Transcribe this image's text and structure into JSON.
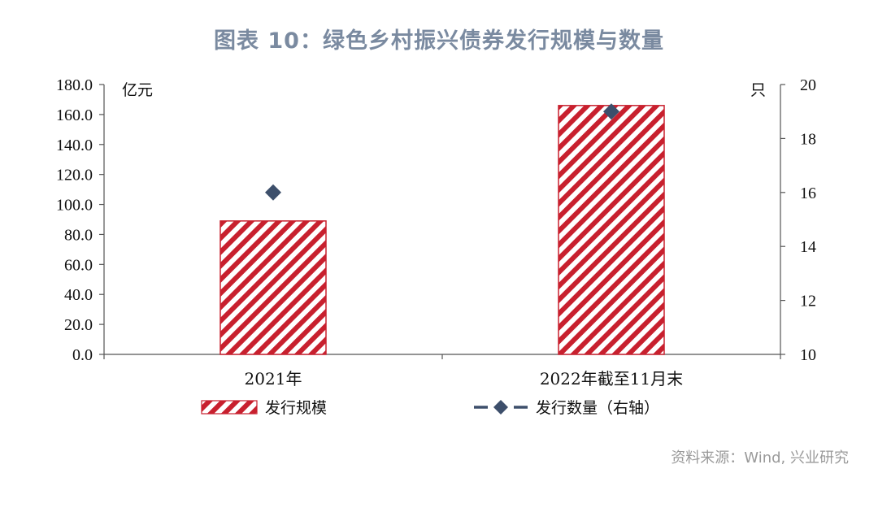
{
  "title": "图表 10：绿色乡村振兴债券发行规模与数量",
  "source": "资料来源：Wind, 兴业研究",
  "colors": {
    "bar": "#c8202e",
    "marker": "#3d4f6b",
    "title": "#7a8aa0"
  },
  "chart_data": {
    "type": "bar",
    "categories": [
      "2021年",
      "2022年截至11月末"
    ],
    "series": [
      {
        "name": "发行规模",
        "type": "bar",
        "axis": "left",
        "values": [
          89.0,
          166.0
        ]
      },
      {
        "name": "发行数量（右轴）",
        "type": "line",
        "axis": "right",
        "marker": "diamond",
        "values": [
          16,
          19
        ]
      }
    ],
    "ylabel_left": "亿元",
    "ylabel_right": "只",
    "ylim_left": [
      0,
      180
    ],
    "ylim_right": [
      10,
      20
    ],
    "yticks_left": [
      "0.0",
      "20.0",
      "40.0",
      "60.0",
      "80.0",
      "100.0",
      "120.0",
      "140.0",
      "160.0",
      "180.0"
    ],
    "yticks_right": [
      "10",
      "12",
      "14",
      "16",
      "18",
      "20"
    ],
    "grid": false,
    "legend_position": "bottom"
  }
}
